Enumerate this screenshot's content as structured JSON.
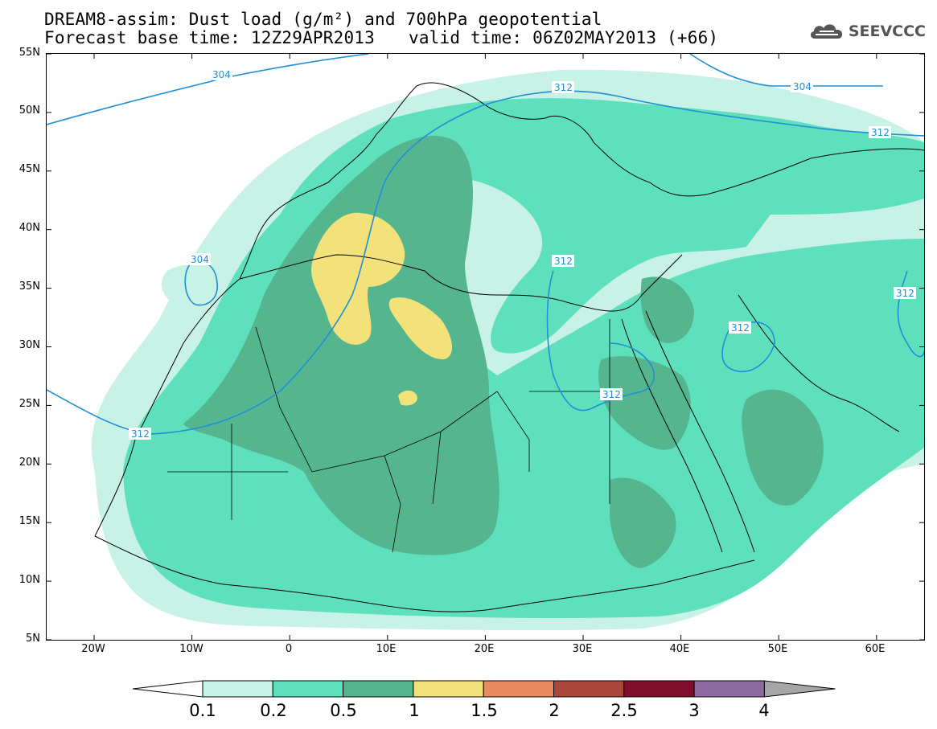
{
  "title": {
    "line1": "DREAM8-assim: Dust load (g/m²) and 700hPa geopotential",
    "line2_base": "Forecast base time: 12Z29APR2013",
    "line2_valid": "valid time: 06Z02MAY2013 (+66)"
  },
  "logo": {
    "text": "SEEVCCC",
    "icon": "cloud-icon"
  },
  "map": {
    "lat_labels": [
      "55N",
      "50N",
      "45N",
      "40N",
      "35N",
      "30N",
      "25N",
      "20N",
      "15N",
      "10N",
      "5N"
    ],
    "lon_labels": [
      "20W",
      "10W",
      "0",
      "10E",
      "20E",
      "30E",
      "40E",
      "50E",
      "60E"
    ],
    "contour_labels": [
      "304",
      "312",
      "304",
      "312",
      "304",
      "312",
      "312",
      "312",
      "312",
      "312"
    ],
    "contour_color": "#1f8fd6"
  },
  "colorbar": {
    "levels": [
      "0.1",
      "0.2",
      "0.5",
      "1",
      "1.5",
      "2",
      "2.5",
      "3",
      "4"
    ],
    "colors": [
      "#c9f2e7",
      "#5ee0bd",
      "#55b58f",
      "#f3e27a",
      "#e98a63",
      "#a9473b",
      "#7f0e2a",
      "#8e6a9e",
      "#a6a6a6"
    ]
  }
}
